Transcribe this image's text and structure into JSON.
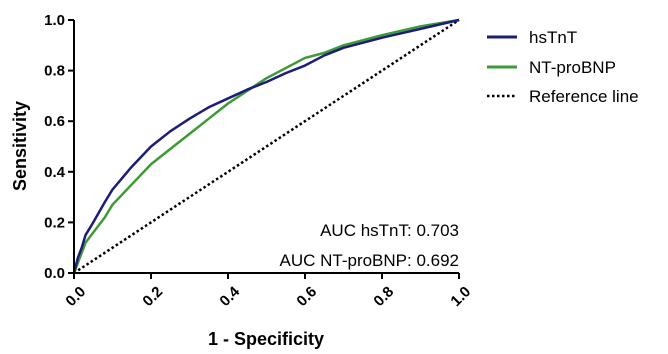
{
  "chart_data": {
    "type": "line",
    "xlabel": "1 - Specificity",
    "ylabel": "Sensitivity",
    "xlim": [
      0,
      1
    ],
    "ylim": [
      0,
      1
    ],
    "x_ticks": [
      "0.0",
      "0.2",
      "0.4",
      "0.6",
      "0.8",
      "1.0"
    ],
    "y_ticks": [
      "0.0",
      "0.2",
      "0.4",
      "0.6",
      "0.8",
      "1.0"
    ],
    "grid": false,
    "legend_position": "right",
    "series": [
      {
        "name": "hsTnT",
        "color": "#1c1c7a",
        "style": "solid",
        "x": [
          0,
          0.01,
          0.02,
          0.03,
          0.05,
          0.08,
          0.1,
          0.15,
          0.2,
          0.25,
          0.3,
          0.35,
          0.4,
          0.45,
          0.5,
          0.55,
          0.6,
          0.65,
          0.7,
          0.8,
          0.9,
          1.0
        ],
        "y": [
          0,
          0.06,
          0.1,
          0.15,
          0.2,
          0.28,
          0.33,
          0.42,
          0.5,
          0.56,
          0.61,
          0.655,
          0.69,
          0.725,
          0.755,
          0.79,
          0.82,
          0.86,
          0.89,
          0.93,
          0.965,
          1.0
        ]
      },
      {
        "name": "NT-proBNP",
        "color": "#3d9b35",
        "style": "solid",
        "x": [
          0,
          0.01,
          0.02,
          0.03,
          0.05,
          0.08,
          0.1,
          0.15,
          0.2,
          0.25,
          0.3,
          0.35,
          0.4,
          0.45,
          0.5,
          0.55,
          0.6,
          0.65,
          0.7,
          0.8,
          0.9,
          1.0
        ],
        "y": [
          0,
          0.04,
          0.08,
          0.12,
          0.16,
          0.22,
          0.27,
          0.35,
          0.43,
          0.49,
          0.55,
          0.61,
          0.67,
          0.72,
          0.77,
          0.81,
          0.85,
          0.87,
          0.9,
          0.94,
          0.975,
          1.0
        ]
      },
      {
        "name": "Reference line",
        "color": "#000000",
        "style": "dotted",
        "x": [
          0,
          1
        ],
        "y": [
          0,
          1
        ]
      }
    ],
    "annotations": [
      "AUC hsTnT: 0.703",
      "AUC NT-proBNP: 0.692"
    ]
  }
}
